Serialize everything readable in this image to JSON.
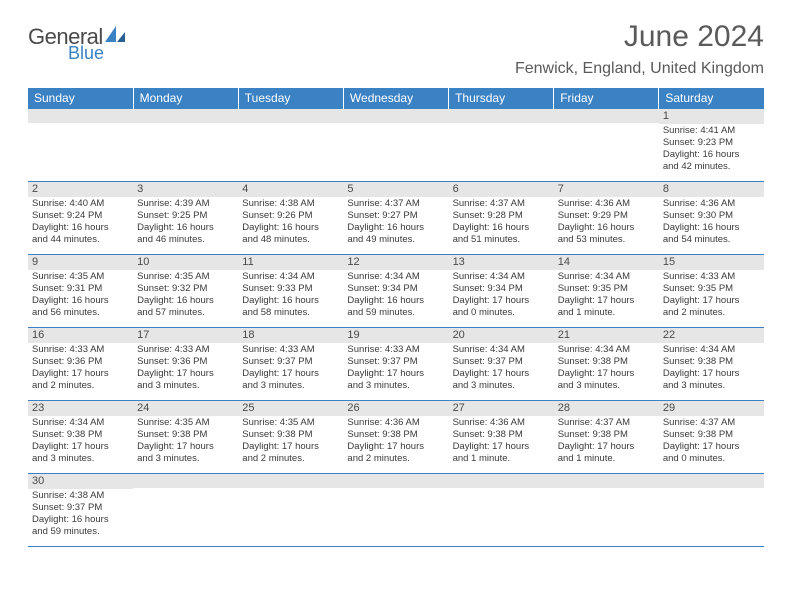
{
  "logo": {
    "line1": "General",
    "line2": "Blue",
    "brand_color": "#3b82c4"
  },
  "title": "June 2024",
  "location": "Fenwick, England, United Kingdom",
  "colors": {
    "header_bg": "#3b82c4",
    "header_text": "#ffffff",
    "daynum_bg": "#e6e6e6",
    "border": "#3b82c4",
    "text": "#3a3a3a"
  },
  "weekdays": [
    "Sunday",
    "Monday",
    "Tuesday",
    "Wednesday",
    "Thursday",
    "Friday",
    "Saturday"
  ],
  "weeks": [
    [
      {
        "n": "",
        "l1": "",
        "l2": "",
        "l3": "",
        "l4": ""
      },
      {
        "n": "",
        "l1": "",
        "l2": "",
        "l3": "",
        "l4": ""
      },
      {
        "n": "",
        "l1": "",
        "l2": "",
        "l3": "",
        "l4": ""
      },
      {
        "n": "",
        "l1": "",
        "l2": "",
        "l3": "",
        "l4": ""
      },
      {
        "n": "",
        "l1": "",
        "l2": "",
        "l3": "",
        "l4": ""
      },
      {
        "n": "",
        "l1": "",
        "l2": "",
        "l3": "",
        "l4": ""
      },
      {
        "n": "1",
        "l1": "Sunrise: 4:41 AM",
        "l2": "Sunset: 9:23 PM",
        "l3": "Daylight: 16 hours",
        "l4": "and 42 minutes."
      }
    ],
    [
      {
        "n": "2",
        "l1": "Sunrise: 4:40 AM",
        "l2": "Sunset: 9:24 PM",
        "l3": "Daylight: 16 hours",
        "l4": "and 44 minutes."
      },
      {
        "n": "3",
        "l1": "Sunrise: 4:39 AM",
        "l2": "Sunset: 9:25 PM",
        "l3": "Daylight: 16 hours",
        "l4": "and 46 minutes."
      },
      {
        "n": "4",
        "l1": "Sunrise: 4:38 AM",
        "l2": "Sunset: 9:26 PM",
        "l3": "Daylight: 16 hours",
        "l4": "and 48 minutes."
      },
      {
        "n": "5",
        "l1": "Sunrise: 4:37 AM",
        "l2": "Sunset: 9:27 PM",
        "l3": "Daylight: 16 hours",
        "l4": "and 49 minutes."
      },
      {
        "n": "6",
        "l1": "Sunrise: 4:37 AM",
        "l2": "Sunset: 9:28 PM",
        "l3": "Daylight: 16 hours",
        "l4": "and 51 minutes."
      },
      {
        "n": "7",
        "l1": "Sunrise: 4:36 AM",
        "l2": "Sunset: 9:29 PM",
        "l3": "Daylight: 16 hours",
        "l4": "and 53 minutes."
      },
      {
        "n": "8",
        "l1": "Sunrise: 4:36 AM",
        "l2": "Sunset: 9:30 PM",
        "l3": "Daylight: 16 hours",
        "l4": "and 54 minutes."
      }
    ],
    [
      {
        "n": "9",
        "l1": "Sunrise: 4:35 AM",
        "l2": "Sunset: 9:31 PM",
        "l3": "Daylight: 16 hours",
        "l4": "and 56 minutes."
      },
      {
        "n": "10",
        "l1": "Sunrise: 4:35 AM",
        "l2": "Sunset: 9:32 PM",
        "l3": "Daylight: 16 hours",
        "l4": "and 57 minutes."
      },
      {
        "n": "11",
        "l1": "Sunrise: 4:34 AM",
        "l2": "Sunset: 9:33 PM",
        "l3": "Daylight: 16 hours",
        "l4": "and 58 minutes."
      },
      {
        "n": "12",
        "l1": "Sunrise: 4:34 AM",
        "l2": "Sunset: 9:34 PM",
        "l3": "Daylight: 16 hours",
        "l4": "and 59 minutes."
      },
      {
        "n": "13",
        "l1": "Sunrise: 4:34 AM",
        "l2": "Sunset: 9:34 PM",
        "l3": "Daylight: 17 hours",
        "l4": "and 0 minutes."
      },
      {
        "n": "14",
        "l1": "Sunrise: 4:34 AM",
        "l2": "Sunset: 9:35 PM",
        "l3": "Daylight: 17 hours",
        "l4": "and 1 minute."
      },
      {
        "n": "15",
        "l1": "Sunrise: 4:33 AM",
        "l2": "Sunset: 9:35 PM",
        "l3": "Daylight: 17 hours",
        "l4": "and 2 minutes."
      }
    ],
    [
      {
        "n": "16",
        "l1": "Sunrise: 4:33 AM",
        "l2": "Sunset: 9:36 PM",
        "l3": "Daylight: 17 hours",
        "l4": "and 2 minutes."
      },
      {
        "n": "17",
        "l1": "Sunrise: 4:33 AM",
        "l2": "Sunset: 9:36 PM",
        "l3": "Daylight: 17 hours",
        "l4": "and 3 minutes."
      },
      {
        "n": "18",
        "l1": "Sunrise: 4:33 AM",
        "l2": "Sunset: 9:37 PM",
        "l3": "Daylight: 17 hours",
        "l4": "and 3 minutes."
      },
      {
        "n": "19",
        "l1": "Sunrise: 4:33 AM",
        "l2": "Sunset: 9:37 PM",
        "l3": "Daylight: 17 hours",
        "l4": "and 3 minutes."
      },
      {
        "n": "20",
        "l1": "Sunrise: 4:34 AM",
        "l2": "Sunset: 9:37 PM",
        "l3": "Daylight: 17 hours",
        "l4": "and 3 minutes."
      },
      {
        "n": "21",
        "l1": "Sunrise: 4:34 AM",
        "l2": "Sunset: 9:38 PM",
        "l3": "Daylight: 17 hours",
        "l4": "and 3 minutes."
      },
      {
        "n": "22",
        "l1": "Sunrise: 4:34 AM",
        "l2": "Sunset: 9:38 PM",
        "l3": "Daylight: 17 hours",
        "l4": "and 3 minutes."
      }
    ],
    [
      {
        "n": "23",
        "l1": "Sunrise: 4:34 AM",
        "l2": "Sunset: 9:38 PM",
        "l3": "Daylight: 17 hours",
        "l4": "and 3 minutes."
      },
      {
        "n": "24",
        "l1": "Sunrise: 4:35 AM",
        "l2": "Sunset: 9:38 PM",
        "l3": "Daylight: 17 hours",
        "l4": "and 3 minutes."
      },
      {
        "n": "25",
        "l1": "Sunrise: 4:35 AM",
        "l2": "Sunset: 9:38 PM",
        "l3": "Daylight: 17 hours",
        "l4": "and 2 minutes."
      },
      {
        "n": "26",
        "l1": "Sunrise: 4:36 AM",
        "l2": "Sunset: 9:38 PM",
        "l3": "Daylight: 17 hours",
        "l4": "and 2 minutes."
      },
      {
        "n": "27",
        "l1": "Sunrise: 4:36 AM",
        "l2": "Sunset: 9:38 PM",
        "l3": "Daylight: 17 hours",
        "l4": "and 1 minute."
      },
      {
        "n": "28",
        "l1": "Sunrise: 4:37 AM",
        "l2": "Sunset: 9:38 PM",
        "l3": "Daylight: 17 hours",
        "l4": "and 1 minute."
      },
      {
        "n": "29",
        "l1": "Sunrise: 4:37 AM",
        "l2": "Sunset: 9:38 PM",
        "l3": "Daylight: 17 hours",
        "l4": "and 0 minutes."
      }
    ],
    [
      {
        "n": "30",
        "l1": "Sunrise: 4:38 AM",
        "l2": "Sunset: 9:37 PM",
        "l3": "Daylight: 16 hours",
        "l4": "and 59 minutes."
      },
      {
        "n": "",
        "l1": "",
        "l2": "",
        "l3": "",
        "l4": ""
      },
      {
        "n": "",
        "l1": "",
        "l2": "",
        "l3": "",
        "l4": ""
      },
      {
        "n": "",
        "l1": "",
        "l2": "",
        "l3": "",
        "l4": ""
      },
      {
        "n": "",
        "l1": "",
        "l2": "",
        "l3": "",
        "l4": ""
      },
      {
        "n": "",
        "l1": "",
        "l2": "",
        "l3": "",
        "l4": ""
      },
      {
        "n": "",
        "l1": "",
        "l2": "",
        "l3": "",
        "l4": ""
      }
    ]
  ]
}
